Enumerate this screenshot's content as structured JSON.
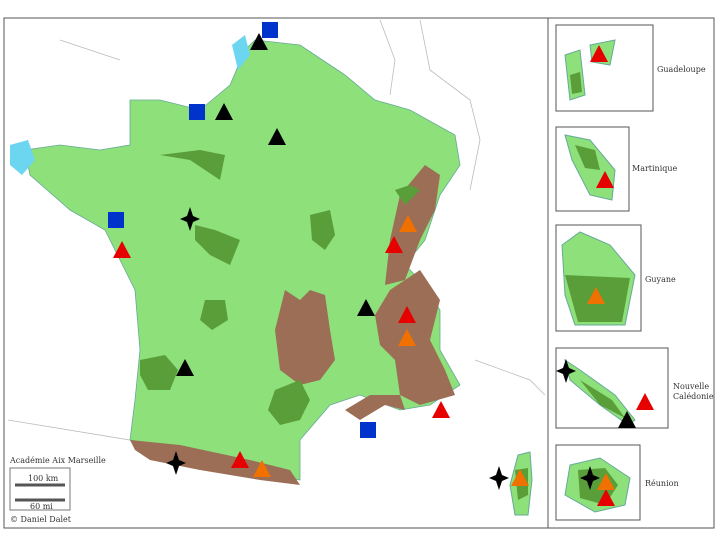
{
  "map": {
    "source": "Académie Aix Marseille",
    "scale": [
      "100 km",
      "60 mi"
    ],
    "credit": "© Daniel Dalet"
  },
  "insets": [
    {
      "label": [
        "Guadeloupe"
      ]
    },
    {
      "label": [
        "Martinique"
      ]
    },
    {
      "label": [
        "Guyane"
      ]
    },
    {
      "label": [
        "Nouvelle",
        "Calédonie"
      ]
    },
    {
      "label": [
        "Réunion"
      ]
    }
  ]
}
